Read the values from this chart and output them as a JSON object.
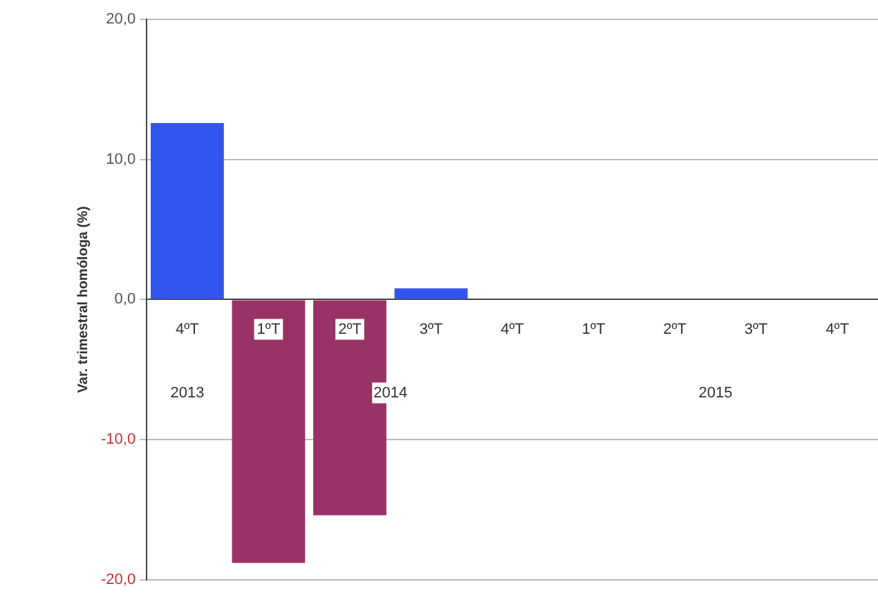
{
  "chart_data": {
    "type": "bar",
    "ylabel": "Var. trimestral homóloga (%)",
    "categories": [
      "4ºT",
      "1ºT",
      "2ºT",
      "3ºT",
      "4ºT",
      "1ºT",
      "2ºT",
      "3ºT",
      "4ºT"
    ],
    "values": [
      12.6,
      -18.8,
      -15.4,
      0.8,
      null,
      null,
      null,
      null,
      null
    ],
    "colors": [
      "#3355ee",
      "#993366",
      "#993366",
      "#3355ee",
      "#3355ee",
      "#3355ee",
      "#3355ee",
      "#3355ee",
      "#3355ee"
    ],
    "ylim": [
      -20,
      20
    ],
    "yticks": [
      {
        "value": -20,
        "label": "-20,0"
      },
      {
        "value": -10,
        "label": "-10,0"
      },
      {
        "value": 0,
        "label": "0,0"
      },
      {
        "value": 10,
        "label": "10,0"
      },
      {
        "value": 20,
        "label": "20,0"
      }
    ],
    "grid": "y",
    "annotations": [
      "2013",
      "2014",
      "2015"
    ]
  }
}
